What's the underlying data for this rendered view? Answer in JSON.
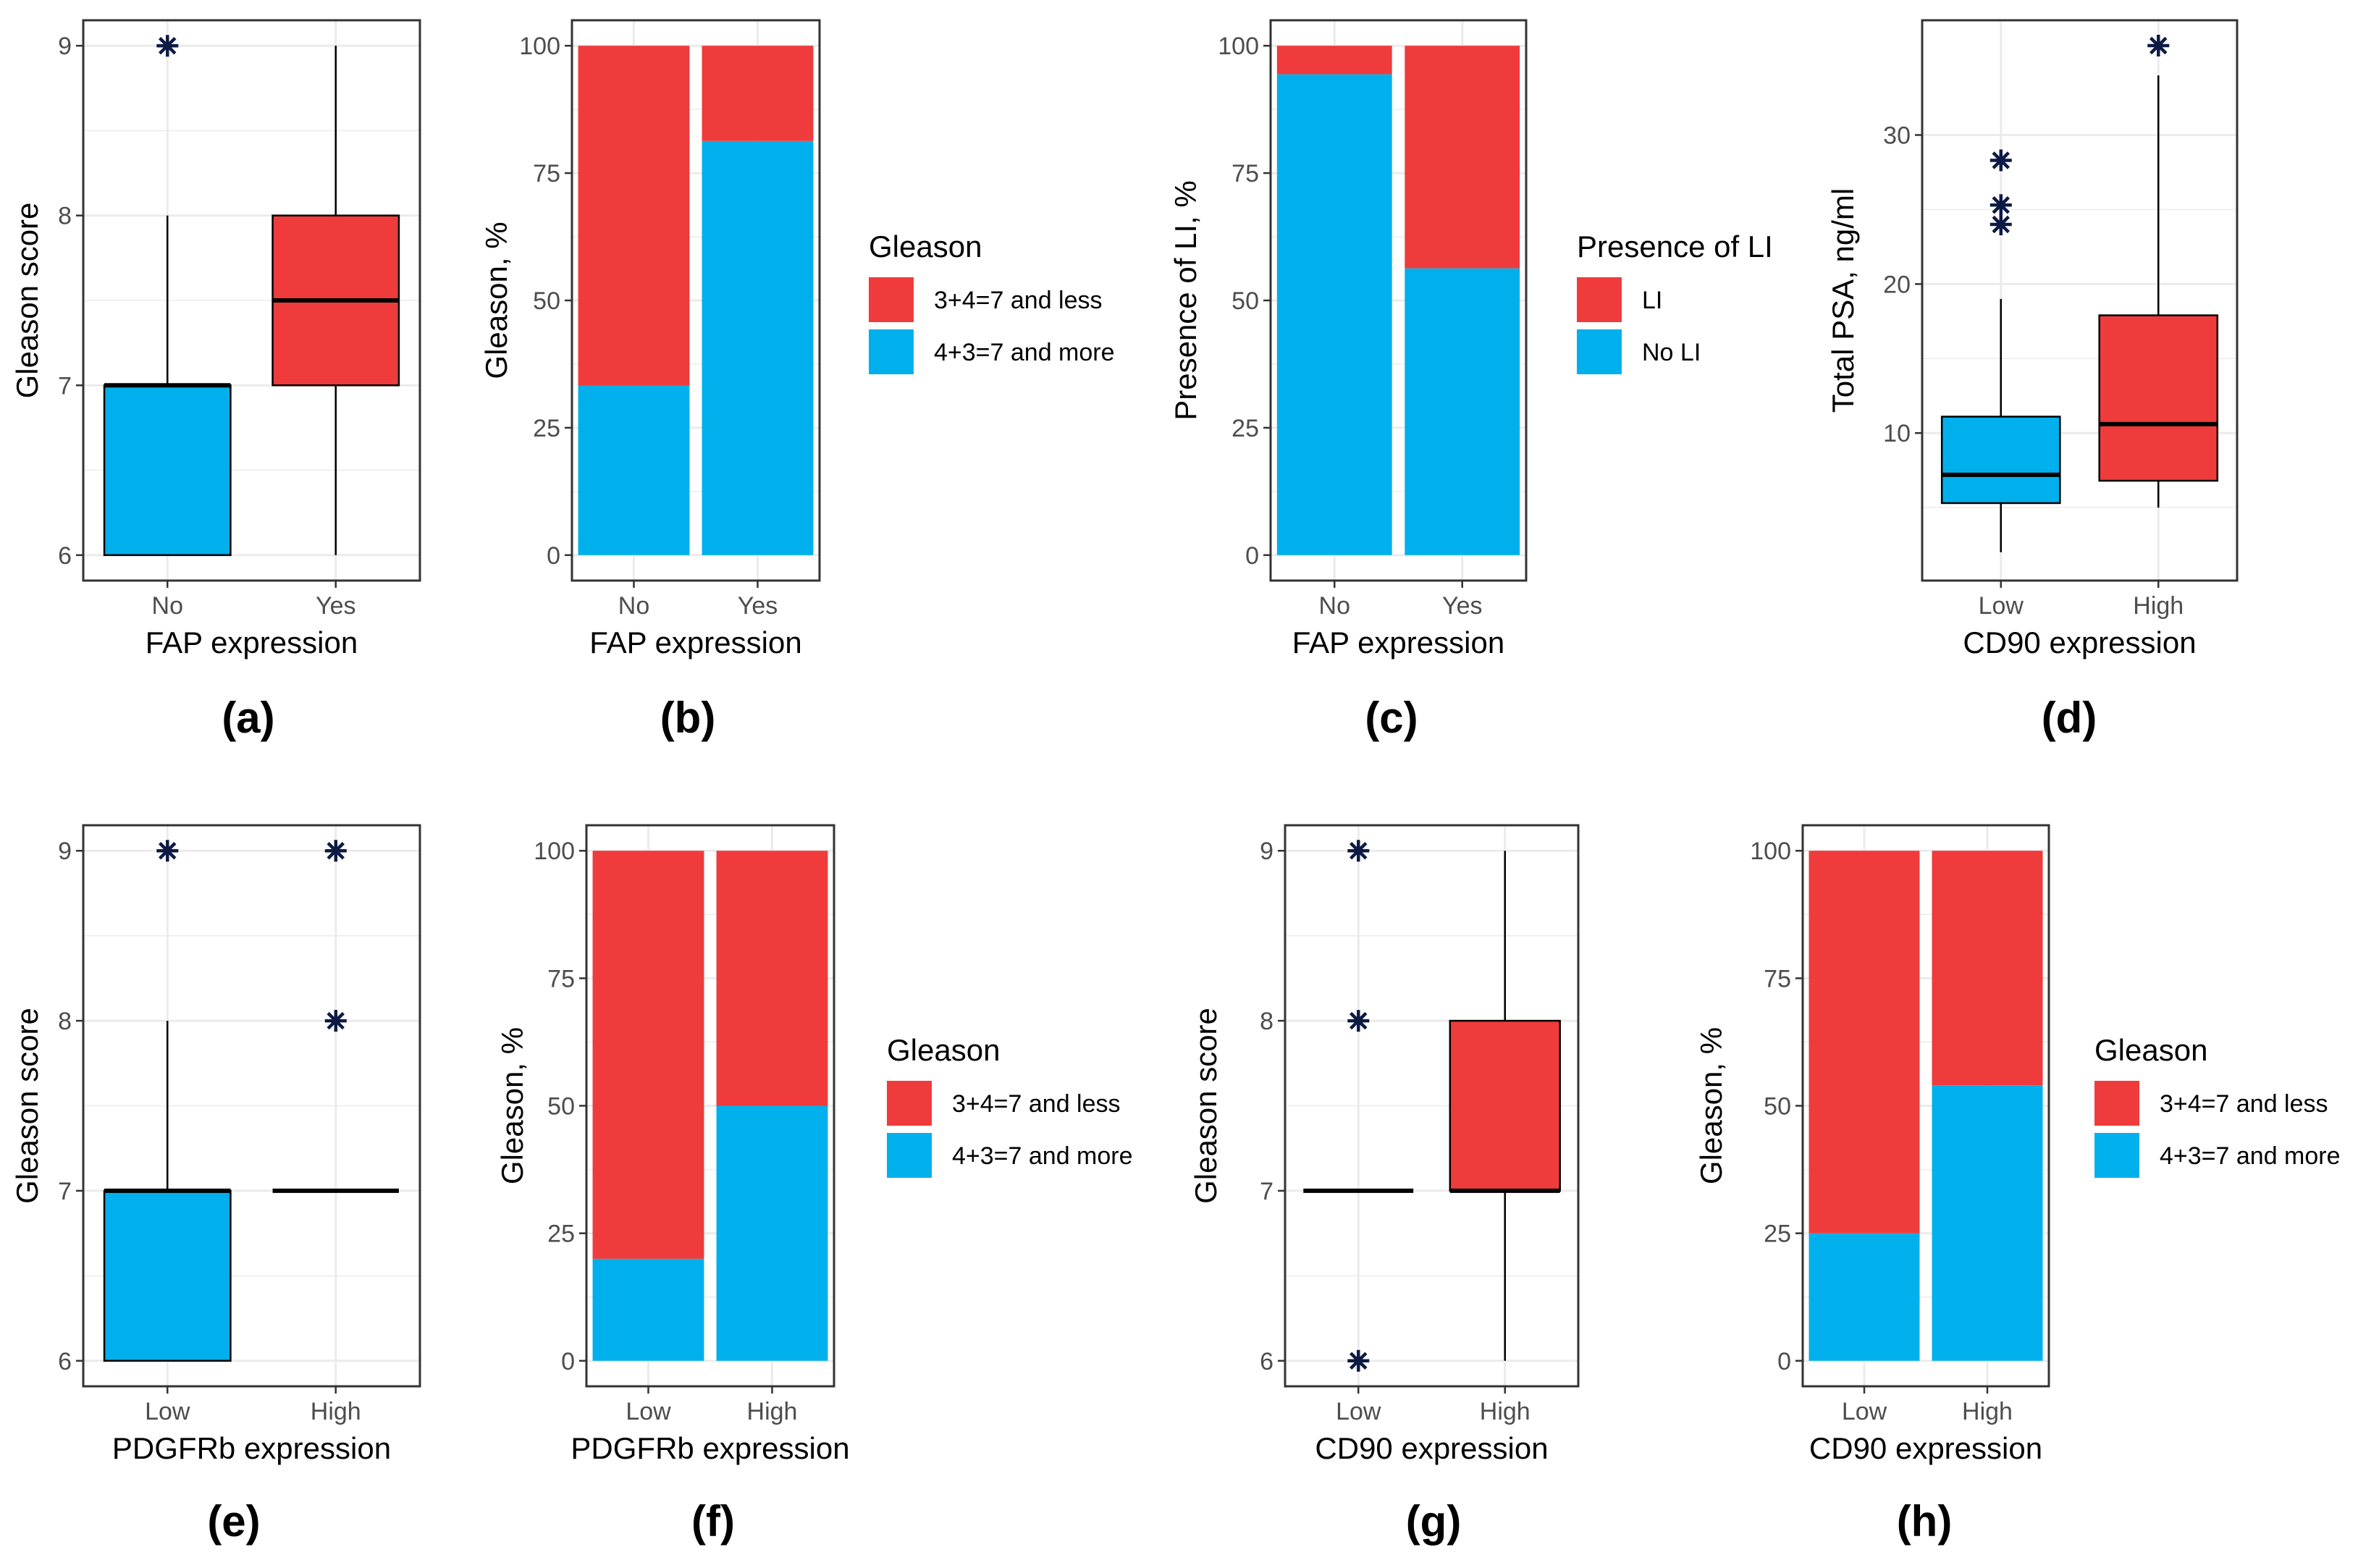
{
  "figure": {
    "panel_labels": [
      "(a)",
      "(b)",
      "(c)",
      "(d)",
      "(e)",
      "(f)",
      "(g)",
      "(h)"
    ]
  },
  "colors": {
    "red": "#ef3b3b",
    "blue": "#00b0ec",
    "grid": "#ebebeb",
    "frame": "#333333",
    "outlier": "#0d1a44"
  },
  "chart_data": [
    {
      "id": "a",
      "type": "box",
      "xlabel": "FAP expression",
      "ylabel": "Gleason score",
      "categories": [
        "No",
        "Yes"
      ],
      "ylim": [
        5.85,
        9.15
      ],
      "yticks": [
        6,
        7,
        8,
        9
      ],
      "boxes": [
        {
          "category": "No",
          "q1": 6,
          "median": 7,
          "q3": 7,
          "whisker_low": 6,
          "whisker_high": 8,
          "outliers": [
            9
          ],
          "color": "blue"
        },
        {
          "category": "Yes",
          "q1": 7,
          "median": 7.5,
          "q3": 8,
          "whisker_low": 6,
          "whisker_high": 9,
          "outliers": [],
          "color": "red"
        }
      ]
    },
    {
      "id": "b",
      "type": "stacked_bar",
      "xlabel": "FAP expression",
      "ylabel": "Gleason, %",
      "categories": [
        "No",
        "Yes"
      ],
      "ylim": [
        -5,
        105
      ],
      "yticks": [
        0,
        25,
        50,
        75,
        100
      ],
      "series": [
        {
          "name": "4+3=7 and more",
          "color": "blue",
          "values": [
            33.3,
            81.3
          ]
        },
        {
          "name": "3+4=7 and less",
          "color": "red",
          "values": [
            66.7,
            18.7
          ]
        }
      ],
      "legend": {
        "title": "Gleason",
        "entries": [
          "3+4=7 and less",
          "4+3=7 and more"
        ],
        "colors": [
          "red",
          "blue"
        ]
      }
    },
    {
      "id": "c",
      "type": "stacked_bar",
      "xlabel": "FAP expression",
      "ylabel": "Presence of LI, %",
      "categories": [
        "No",
        "Yes"
      ],
      "ylim": [
        -5,
        105
      ],
      "yticks": [
        0,
        25,
        50,
        75,
        100
      ],
      "series": [
        {
          "name": "No LI",
          "color": "blue",
          "values": [
            94.4,
            56.3
          ]
        },
        {
          "name": "LI",
          "color": "red",
          "values": [
            5.6,
            43.7
          ]
        }
      ],
      "legend": {
        "title": "Presence of LI",
        "entries": [
          "LI",
          "No LI"
        ],
        "colors": [
          "red",
          "blue"
        ]
      }
    },
    {
      "id": "d",
      "type": "box",
      "xlabel": "CD90 expression",
      "ylabel": "Total PSA, ng/ml",
      "categories": [
        "Low",
        "High"
      ],
      "ylim": [
        0.1,
        37.7
      ],
      "yticks": [
        10,
        20,
        30
      ],
      "boxes": [
        {
          "category": "Low",
          "q1": 5.3,
          "median": 7.2,
          "q3": 11.1,
          "whisker_low": 2,
          "whisker_high": 19,
          "outliers": [
            24,
            25.3,
            28.3
          ],
          "color": "blue"
        },
        {
          "category": "High",
          "q1": 6.8,
          "median": 10.6,
          "q3": 17.9,
          "whisker_low": 5,
          "whisker_high": 34,
          "outliers": [
            36
          ],
          "color": "red"
        }
      ]
    },
    {
      "id": "e",
      "type": "box",
      "xlabel": "PDGFRb expression",
      "ylabel": "Gleason score",
      "categories": [
        "Low",
        "High"
      ],
      "ylim": [
        5.85,
        9.15
      ],
      "yticks": [
        6,
        7,
        8,
        9
      ],
      "boxes": [
        {
          "category": "Low",
          "q1": 6,
          "median": 7,
          "q3": 7,
          "whisker_low": 6,
          "whisker_high": 8,
          "outliers": [
            9
          ],
          "color": "blue"
        },
        {
          "category": "High",
          "q1": 7,
          "median": 7,
          "q3": 7,
          "whisker_low": 7,
          "whisker_high": 7,
          "outliers": [
            8,
            9
          ],
          "color": "blue"
        }
      ]
    },
    {
      "id": "f",
      "type": "stacked_bar",
      "xlabel": "PDGFRb expression",
      "ylabel": "Gleason, %",
      "categories": [
        "Low",
        "High"
      ],
      "ylim": [
        -5,
        105
      ],
      "yticks": [
        0,
        25,
        50,
        75,
        100
      ],
      "series": [
        {
          "name": "4+3=7 and more",
          "color": "blue",
          "values": [
            20,
            50
          ]
        },
        {
          "name": "3+4=7 and less",
          "color": "red",
          "values": [
            80,
            50
          ]
        }
      ],
      "legend": {
        "title": "Gleason",
        "entries": [
          "3+4=7 and less",
          "4+3=7 and more"
        ],
        "colors": [
          "red",
          "blue"
        ]
      }
    },
    {
      "id": "g",
      "type": "box",
      "xlabel": "CD90 expression",
      "ylabel": "Gleason score",
      "categories": [
        "Low",
        "High"
      ],
      "ylim": [
        5.85,
        9.15
      ],
      "yticks": [
        6,
        7,
        8,
        9
      ],
      "boxes": [
        {
          "category": "Low",
          "q1": 7,
          "median": 7,
          "q3": 7,
          "whisker_low": 7,
          "whisker_high": 7,
          "outliers": [
            6,
            8,
            9
          ],
          "color": "blue"
        },
        {
          "category": "High",
          "q1": 7,
          "median": 7,
          "q3": 8,
          "whisker_low": 6,
          "whisker_high": 9,
          "outliers": [],
          "color": "red"
        }
      ]
    },
    {
      "id": "h",
      "type": "stacked_bar",
      "xlabel": "CD90 expression",
      "ylabel": "Gleason, %",
      "categories": [
        "Low",
        "High"
      ],
      "ylim": [
        -5,
        105
      ],
      "yticks": [
        0,
        25,
        50,
        75,
        100
      ],
      "series": [
        {
          "name": "4+3=7 and more",
          "color": "blue",
          "values": [
            25,
            54
          ]
        },
        {
          "name": "3+4=7 and less",
          "color": "red",
          "values": [
            75,
            46
          ]
        }
      ],
      "legend": {
        "title": "Gleason",
        "entries": [
          "3+4=7 and less",
          "4+3=7 and more"
        ],
        "colors": [
          "red",
          "blue"
        ]
      }
    }
  ]
}
